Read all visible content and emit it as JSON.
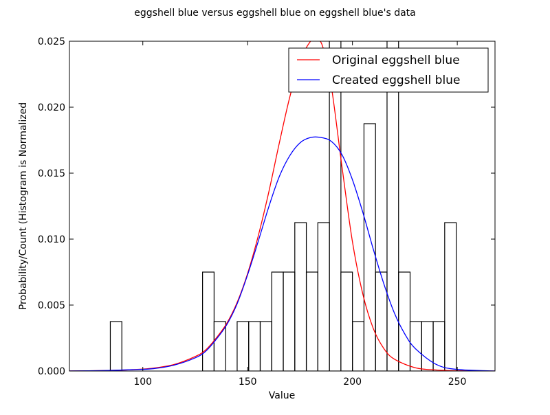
{
  "chart_data": {
    "type": "histogram",
    "title": "eggshell blue versus eggshell blue on eggshell blue's data",
    "xlabel": "Value",
    "ylabel": "Probability/Count (Histogram is Normalized",
    "xlim": [
      65,
      268
    ],
    "ylim": [
      0,
      0.025
    ],
    "grid": false,
    "legend_placement": "top-right",
    "x_ticks": [
      100,
      150,
      200,
      250
    ],
    "x_tick_labels": [
      "100",
      "150",
      "200",
      "250"
    ],
    "y_ticks": [
      0,
      0.005,
      0.01,
      0.015,
      0.02,
      0.025
    ],
    "y_tick_labels": [
      "0.000",
      "0.005",
      "0.010",
      "0.015",
      "0.020",
      "0.025"
    ],
    "histogram": {
      "bin_edges": [
        84.5,
        90.0,
        95.5,
        101.0,
        106.5,
        112.0,
        117.5,
        123.0,
        128.5,
        134.0,
        139.5,
        145.0,
        150.5,
        156.0,
        161.5,
        167.0,
        172.5,
        178.0,
        183.5,
        189.0,
        194.5,
        200.0,
        205.5,
        211.0,
        216.5,
        222.0,
        227.5,
        233.0,
        238.5,
        244.0,
        249.5
      ],
      "densities": [
        0.00375,
        0,
        0,
        0,
        0,
        0,
        0,
        0,
        0.0075,
        0.00375,
        0,
        0.00375,
        0.00375,
        0.00375,
        0.0075,
        0.0075,
        0.01125,
        0.0075,
        0.01125,
        0.02625,
        0.0075,
        0.00375,
        0.01875,
        0.0075,
        0.02625,
        0.0075,
        0.00375,
        0.00375,
        0.00375,
        0.01125
      ]
    },
    "series": [
      {
        "name": "Original eggshell blue",
        "color": "#ff0000",
        "x": [
          65,
          80,
          95,
          105,
          115,
          125,
          130,
          135,
          140,
          145,
          150,
          155,
          160,
          165,
          170,
          175,
          180,
          183,
          186,
          190,
          195,
          200,
          205,
          210,
          215,
          220,
          230,
          240,
          250,
          268
        ],
        "y": [
          5e-06,
          3e-05,
          0.0001,
          0.00022,
          0.0005,
          0.0011,
          0.0016,
          0.0025,
          0.0036,
          0.0052,
          0.0074,
          0.0102,
          0.0135,
          0.0172,
          0.0207,
          0.0235,
          0.025,
          0.0252,
          0.0245,
          0.0215,
          0.0155,
          0.0098,
          0.0058,
          0.0032,
          0.0017,
          0.0009,
          0.00025,
          8e-05,
          2e-05,
          1e-06
        ]
      },
      {
        "name": "Created eggshell blue",
        "color": "#0000ff",
        "x": [
          65,
          80,
          95,
          105,
          115,
          125,
          130,
          135,
          140,
          145,
          150,
          155,
          160,
          165,
          170,
          175,
          180,
          185,
          190,
          195,
          200,
          205,
          210,
          215,
          220,
          225,
          230,
          240,
          250,
          268
        ],
        "y": [
          5e-06,
          3e-05,
          0.0001,
          0.00018,
          0.00045,
          0.001,
          0.0015,
          0.0024,
          0.0035,
          0.0051,
          0.0073,
          0.0098,
          0.0124,
          0.0147,
          0.0163,
          0.0173,
          0.0177,
          0.0177,
          0.0174,
          0.0164,
          0.0145,
          0.012,
          0.0092,
          0.0066,
          0.0044,
          0.0028,
          0.0017,
          0.0005,
          0.00012,
          5e-06
        ]
      }
    ]
  }
}
